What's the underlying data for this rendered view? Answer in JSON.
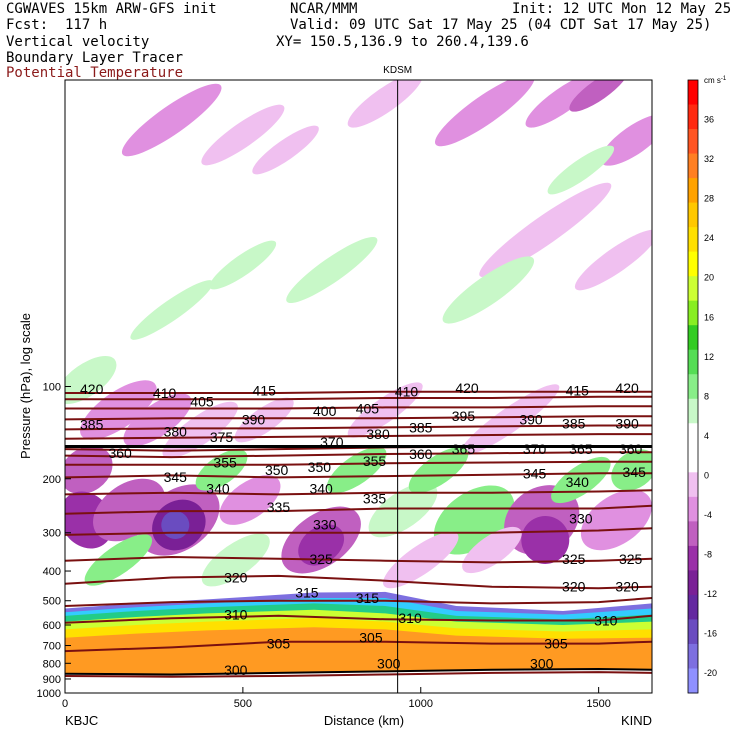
{
  "header": {
    "model": "CGWAVES 15km ARW-GFS init",
    "org": "NCAR/MMM",
    "init": "Init: 12 UTC Mon 12 May 25",
    "fcst": "Fcst:  117 h",
    "valid": "Valid: 09 UTC Sat 17 May 25 (04 CDT Sat 17 May 25)",
    "field1": "Vertical velocity",
    "xy": "XY= 150.5,136.9 to 260.4,139.6",
    "field2": "Boundary Layer Tracer",
    "field3": "Potential Temperature"
  },
  "chart_data": {
    "type": "heatmap",
    "xlabel": "Distance (km)",
    "ylabel": "Pressure (hPa), log scale",
    "xlim": [
      0,
      1650
    ],
    "x_ticks": [
      0,
      500,
      1000,
      1500
    ],
    "ylim_hpa": [
      1000,
      10
    ],
    "y_scale": "log",
    "y_ticks": [
      100,
      200,
      300,
      400,
      500,
      600,
      700,
      800,
      900,
      1000
    ],
    "station_marker": {
      "label": "KDSM",
      "x_km": 935
    },
    "endpoints": {
      "left": "KBJC",
      "right": "KIND"
    },
    "colorbar": {
      "units": "cm s",
      "units_exp": "-1",
      "ticks": [
        36,
        32,
        28,
        24,
        20,
        16,
        12,
        8,
        4,
        0,
        -4,
        -8,
        -12,
        -16,
        -20
      ],
      "colors": [
        "#ff0000",
        "#ff2a10",
        "#ff5522",
        "#ff7f22",
        "#ffa200",
        "#ffc800",
        "#ffe000",
        "#ffff00",
        "#ccff33",
        "#88ee22",
        "#33cc22",
        "#55dd55",
        "#88ee88",
        "#c8f8c8",
        "#ffffff",
        "#ffffff",
        "#f0c0f0",
        "#e090e0",
        "#c060c0",
        "#9a30a8",
        "#7a2096",
        "#6428a0",
        "#6a4cc0",
        "#7d6fe0",
        "#8f90ff"
      ]
    },
    "theta_contours_K": [
      {
        "v": 300,
        "p": [
          [
            0,
            880
          ],
          [
            300,
            885
          ],
          [
            600,
            880
          ],
          [
            900,
            870
          ],
          [
            1200,
            860
          ],
          [
            1500,
            855
          ],
          [
            1650,
            860
          ]
        ]
      },
      {
        "v": 305,
        "p": [
          [
            0,
            730
          ],
          [
            300,
            710
          ],
          [
            600,
            680
          ],
          [
            900,
            680
          ],
          [
            1200,
            690
          ],
          [
            1500,
            690
          ],
          [
            1650,
            680
          ]
        ]
      },
      {
        "v": 310,
        "p": [
          [
            0,
            590
          ],
          [
            300,
            570
          ],
          [
            600,
            560
          ],
          [
            900,
            575
          ],
          [
            1200,
            580
          ],
          [
            1500,
            580
          ],
          [
            1650,
            560
          ]
        ]
      },
      {
        "v": 315,
        "p": [
          [
            0,
            520
          ],
          [
            300,
            505
          ],
          [
            600,
            500
          ],
          [
            900,
            500
          ],
          [
            1200,
            510
          ],
          [
            1500,
            505
          ],
          [
            1650,
            490
          ]
        ]
      },
      {
        "v": 320,
        "p": [
          [
            0,
            440
          ],
          [
            300,
            420
          ],
          [
            600,
            415
          ],
          [
            900,
            430
          ],
          [
            1200,
            450
          ],
          [
            1500,
            455
          ],
          [
            1650,
            450
          ]
        ]
      },
      {
        "v": 325,
        "p": [
          [
            0,
            370
          ],
          [
            300,
            360
          ],
          [
            600,
            365
          ],
          [
            900,
            370
          ],
          [
            1200,
            375
          ],
          [
            1500,
            370
          ],
          [
            1650,
            365
          ]
        ]
      },
      {
        "v": 330,
        "p": [
          [
            0,
            305
          ],
          [
            300,
            300
          ],
          [
            600,
            300
          ],
          [
            900,
            300
          ],
          [
            1200,
            300
          ],
          [
            1500,
            295
          ],
          [
            1650,
            290
          ]
        ]
      },
      {
        "v": 335,
        "p": [
          [
            0,
            260
          ],
          [
            300,
            255
          ],
          [
            600,
            255
          ],
          [
            900,
            250
          ],
          [
            1200,
            250
          ],
          [
            1500,
            250
          ],
          [
            1650,
            245
          ]
        ]
      },
      {
        "v": 340,
        "p": [
          [
            0,
            225
          ],
          [
            300,
            222
          ],
          [
            600,
            225
          ],
          [
            900,
            222
          ],
          [
            1200,
            222
          ],
          [
            1500,
            220
          ],
          [
            1650,
            218
          ]
        ]
      },
      {
        "v": 345,
        "p": [
          [
            0,
            198
          ],
          [
            300,
            195
          ],
          [
            600,
            198
          ],
          [
            900,
            196
          ],
          [
            1200,
            194
          ],
          [
            1500,
            192
          ],
          [
            1650,
            192
          ]
        ]
      },
      {
        "v": 350,
        "p": [
          [
            0,
            180
          ],
          [
            300,
            180
          ],
          [
            600,
            180
          ],
          [
            900,
            178
          ],
          [
            1200,
            177
          ],
          [
            1500,
            176
          ],
          [
            1650,
            176
          ]
        ]
      },
      {
        "v": 355,
        "p": [
          [
            0,
            168
          ],
          [
            300,
            170
          ],
          [
            600,
            168
          ],
          [
            900,
            166
          ],
          [
            1200,
            165
          ],
          [
            1500,
            164
          ],
          [
            1650,
            164
          ]
        ]
      },
      {
        "v": 360,
        "p": [
          [
            0,
            160
          ],
          [
            300,
            162
          ],
          [
            600,
            160
          ],
          [
            900,
            158
          ],
          [
            1200,
            157
          ],
          [
            1500,
            157
          ],
          [
            1650,
            157
          ]
        ]
      },
      {
        "v": 375,
        "p": [
          [
            0,
            148
          ],
          [
            300,
            147
          ],
          [
            600,
            146
          ],
          [
            900,
            145
          ],
          [
            1200,
            144
          ],
          [
            1500,
            143
          ],
          [
            1650,
            143
          ]
        ]
      },
      {
        "v": 385,
        "p": [
          [
            0,
            138
          ],
          [
            300,
            137
          ],
          [
            600,
            137
          ],
          [
            900,
            136
          ],
          [
            1200,
            135
          ],
          [
            1500,
            134
          ],
          [
            1650,
            134
          ]
        ]
      },
      {
        "v": 395,
        "p": [
          [
            0,
            128
          ],
          [
            300,
            127
          ],
          [
            600,
            127
          ],
          [
            900,
            127
          ],
          [
            1200,
            126
          ],
          [
            1500,
            125
          ],
          [
            1650,
            125
          ]
        ]
      },
      {
        "v": 405,
        "p": [
          [
            0,
            118
          ],
          [
            300,
            118
          ],
          [
            600,
            118
          ],
          [
            900,
            117
          ],
          [
            1200,
            117
          ],
          [
            1500,
            116
          ],
          [
            1650,
            116
          ]
        ]
      },
      {
        "v": 415,
        "p": [
          [
            0,
            110
          ],
          [
            300,
            110
          ],
          [
            600,
            110
          ],
          [
            900,
            109
          ],
          [
            1200,
            109
          ],
          [
            1500,
            108
          ],
          [
            1650,
            108
          ]
        ]
      },
      {
        "v": 420,
        "p": [
          [
            0,
            105
          ],
          [
            300,
            105
          ],
          [
            600,
            105
          ],
          [
            900,
            104
          ],
          [
            1200,
            104
          ],
          [
            1500,
            104
          ],
          [
            1650,
            104
          ]
        ]
      }
    ],
    "contour_labels": [
      {
        "t": "420",
        "x": 75,
        "p": 102
      },
      {
        "t": "410",
        "x": 280,
        "p": 105
      },
      {
        "t": "415",
        "x": 560,
        "p": 103
      },
      {
        "t": "410",
        "x": 960,
        "p": 104
      },
      {
        "t": "420",
        "x": 1130,
        "p": 101
      },
      {
        "t": "415",
        "x": 1440,
        "p": 103
      },
      {
        "t": "420",
        "x": 1580,
        "p": 101
      },
      {
        "t": "405",
        "x": 385,
        "p": 112
      },
      {
        "t": "400",
        "x": 730,
        "p": 120
      },
      {
        "t": "405",
        "x": 850,
        "p": 118
      },
      {
        "t": "395",
        "x": 1120,
        "p": 125
      },
      {
        "t": "390",
        "x": 1310,
        "p": 128
      },
      {
        "t": "385",
        "x": 75,
        "p": 133
      },
      {
        "t": "390",
        "x": 530,
        "p": 128
      },
      {
        "t": "385",
        "x": 1000,
        "p": 136
      },
      {
        "t": "385",
        "x": 1430,
        "p": 132
      },
      {
        "t": "390",
        "x": 1580,
        "p": 132
      },
      {
        "t": "380",
        "x": 310,
        "p": 140
      },
      {
        "t": "375",
        "x": 440,
        "p": 146
      },
      {
        "t": "380",
        "x": 880,
        "p": 143
      },
      {
        "t": "370",
        "x": 750,
        "p": 152
      },
      {
        "t": "370",
        "x": 1320,
        "p": 160
      },
      {
        "t": "365",
        "x": 1450,
        "p": 160
      },
      {
        "t": "360",
        "x": 1590,
        "p": 160
      },
      {
        "t": "360",
        "x": 155,
        "p": 165
      },
      {
        "t": "365",
        "x": 1120,
        "p": 160
      },
      {
        "t": "360",
        "x": 1000,
        "p": 166
      },
      {
        "t": "355",
        "x": 450,
        "p": 177
      },
      {
        "t": "355",
        "x": 870,
        "p": 175
      },
      {
        "t": "350",
        "x": 595,
        "p": 187
      },
      {
        "t": "350",
        "x": 715,
        "p": 183
      },
      {
        "t": "345",
        "x": 310,
        "p": 197
      },
      {
        "t": "345",
        "x": 1320,
        "p": 192
      },
      {
        "t": "345",
        "x": 1600,
        "p": 190
      },
      {
        "t": "340",
        "x": 430,
        "p": 215
      },
      {
        "t": "340",
        "x": 720,
        "p": 215
      },
      {
        "t": "340",
        "x": 1440,
        "p": 205
      },
      {
        "t": "335",
        "x": 600,
        "p": 247
      },
      {
        "t": "335",
        "x": 870,
        "p": 232
      },
      {
        "t": "330",
        "x": 730,
        "p": 282
      },
      {
        "t": "330",
        "x": 1450,
        "p": 270
      },
      {
        "t": "325",
        "x": 720,
        "p": 365
      },
      {
        "t": "325",
        "x": 1430,
        "p": 365
      },
      {
        "t": "325",
        "x": 1590,
        "p": 365
      },
      {
        "t": "320",
        "x": 480,
        "p": 420
      },
      {
        "t": "320",
        "x": 1430,
        "p": 450
      },
      {
        "t": "320",
        "x": 1580,
        "p": 450
      },
      {
        "t": "315",
        "x": 680,
        "p": 470
      },
      {
        "t": "315",
        "x": 850,
        "p": 490
      },
      {
        "t": "310",
        "x": 480,
        "p": 555
      },
      {
        "t": "310",
        "x": 970,
        "p": 570
      },
      {
        "t": "310",
        "x": 1520,
        "p": 580
      },
      {
        "t": "305",
        "x": 600,
        "p": 690
      },
      {
        "t": "305",
        "x": 860,
        "p": 660
      },
      {
        "t": "305",
        "x": 1380,
        "p": 690
      },
      {
        "t": "300",
        "x": 480,
        "p": 840
      },
      {
        "t": "300",
        "x": 910,
        "p": 800
      },
      {
        "t": "300",
        "x": 1340,
        "p": 800
      }
    ]
  }
}
